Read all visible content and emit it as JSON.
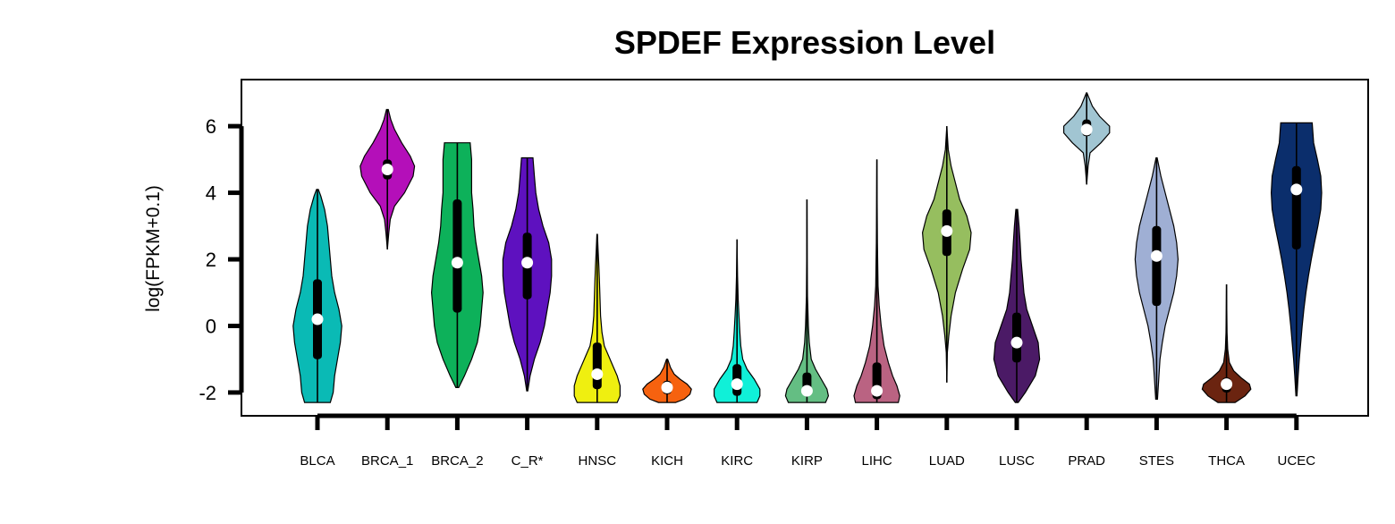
{
  "chart_data": {
    "type": "violin",
    "title": "SPDEF Expression Level",
    "ylabel": "log(FPKM+0.1)",
    "xlabel": "",
    "ylim": [
      -2.7,
      7.4
    ],
    "yticks": [
      -2,
      0,
      2,
      4,
      6
    ],
    "ytick_labels": [
      "-2",
      "0",
      "2",
      "4",
      "6"
    ],
    "grid": false,
    "categories": [
      "BLCA",
      "BRCA_1",
      "BRCA_2",
      "C_R*",
      "HNSC",
      "KICH",
      "KIRC",
      "KIRP",
      "LIHC",
      "LUAD",
      "LUSC",
      "PRAD",
      "STES",
      "THCA",
      "UCEC"
    ],
    "colors": [
      "#0ABAB5",
      "#B40FB9",
      "#0DB15A",
      "#5E11BF",
      "#EFEF10",
      "#F6620F",
      "#10F0D8",
      "#64BE83",
      "#BA6382",
      "#96BE5F",
      "#4B1A66",
      "#A1C5D2",
      "#9FAFD4",
      "#6B2410",
      "#0B2E6C"
    ],
    "series": [
      {
        "category": "BLCA",
        "min": -2.3,
        "max": 4.1,
        "q1": -1.0,
        "q3": 1.4,
        "median": 0.2,
        "density": [
          [
            -2.3,
            0.45
          ],
          [
            -2.0,
            0.55
          ],
          [
            -1.5,
            0.6
          ],
          [
            -1.0,
            0.7
          ],
          [
            -0.5,
            0.8
          ],
          [
            0.0,
            0.85
          ],
          [
            0.5,
            0.75
          ],
          [
            1.0,
            0.6
          ],
          [
            1.5,
            0.5
          ],
          [
            2.0,
            0.45
          ],
          [
            2.5,
            0.4
          ],
          [
            3.0,
            0.35
          ],
          [
            3.5,
            0.25
          ],
          [
            3.9,
            0.12
          ],
          [
            4.1,
            0.03
          ]
        ]
      },
      {
        "category": "BRCA_1",
        "min": 2.3,
        "max": 6.5,
        "q1": 4.4,
        "q3": 5.0,
        "median": 4.7,
        "density": [
          [
            2.3,
            0.0
          ],
          [
            2.8,
            0.05
          ],
          [
            3.2,
            0.1
          ],
          [
            3.6,
            0.25
          ],
          [
            4.0,
            0.6
          ],
          [
            4.5,
            0.9
          ],
          [
            4.8,
            0.95
          ],
          [
            5.1,
            0.8
          ],
          [
            5.5,
            0.5
          ],
          [
            5.9,
            0.25
          ],
          [
            6.2,
            0.12
          ],
          [
            6.5,
            0.03
          ]
        ]
      },
      {
        "category": "BRCA_2",
        "min": -1.85,
        "max": 5.5,
        "q1": 0.4,
        "q3": 3.8,
        "median": 1.9,
        "density": [
          [
            -1.85,
            0.05
          ],
          [
            -1.5,
            0.25
          ],
          [
            -1.0,
            0.5
          ],
          [
            -0.5,
            0.7
          ],
          [
            0.0,
            0.8
          ],
          [
            0.5,
            0.85
          ],
          [
            1.0,
            0.9
          ],
          [
            1.5,
            0.85
          ],
          [
            2.0,
            0.75
          ],
          [
            2.5,
            0.65
          ],
          [
            3.0,
            0.58
          ],
          [
            3.5,
            0.55
          ],
          [
            4.0,
            0.5
          ],
          [
            4.5,
            0.5
          ],
          [
            5.0,
            0.5
          ],
          [
            5.5,
            0.45
          ]
        ]
      },
      {
        "category": "C_R*",
        "min": -1.95,
        "max": 5.05,
        "q1": 0.8,
        "q3": 2.8,
        "median": 1.9,
        "density": [
          [
            -1.95,
            0.02
          ],
          [
            -1.5,
            0.1
          ],
          [
            -1.0,
            0.25
          ],
          [
            -0.5,
            0.45
          ],
          [
            0.0,
            0.6
          ],
          [
            0.5,
            0.7
          ],
          [
            1.0,
            0.8
          ],
          [
            1.5,
            0.85
          ],
          [
            2.0,
            0.85
          ],
          [
            2.5,
            0.75
          ],
          [
            3.0,
            0.55
          ],
          [
            3.5,
            0.4
          ],
          [
            4.0,
            0.3
          ],
          [
            4.5,
            0.25
          ],
          [
            5.05,
            0.2
          ]
        ]
      },
      {
        "category": "HNSC",
        "min": -2.3,
        "max": 2.75,
        "q1": -1.9,
        "q3": -0.5,
        "median": -1.45,
        "density": [
          [
            -2.3,
            0.7
          ],
          [
            -2.1,
            0.8
          ],
          [
            -1.8,
            0.8
          ],
          [
            -1.5,
            0.7
          ],
          [
            -1.2,
            0.55
          ],
          [
            -0.9,
            0.4
          ],
          [
            -0.6,
            0.25
          ],
          [
            -0.2,
            0.17
          ],
          [
            0.3,
            0.12
          ],
          [
            0.8,
            0.1
          ],
          [
            1.3,
            0.08
          ],
          [
            1.8,
            0.06
          ],
          [
            2.3,
            0.03
          ],
          [
            2.75,
            0.01
          ]
        ]
      },
      {
        "category": "KICH",
        "min": -2.3,
        "max": -1.0,
        "q1": -2.05,
        "q3": -1.65,
        "median": -1.85,
        "density": [
          [
            -2.3,
            0.3
          ],
          [
            -2.2,
            0.6
          ],
          [
            -2.05,
            0.8
          ],
          [
            -1.9,
            0.85
          ],
          [
            -1.75,
            0.7
          ],
          [
            -1.6,
            0.45
          ],
          [
            -1.45,
            0.25
          ],
          [
            -1.25,
            0.12
          ],
          [
            -1.0,
            0.02
          ]
        ]
      },
      {
        "category": "KIRC",
        "min": -2.3,
        "max": 2.6,
        "q1": -2.1,
        "q3": -1.15,
        "median": -1.75,
        "density": [
          [
            -2.3,
            0.7
          ],
          [
            -2.1,
            0.8
          ],
          [
            -1.9,
            0.8
          ],
          [
            -1.6,
            0.6
          ],
          [
            -1.3,
            0.35
          ],
          [
            -1.0,
            0.2
          ],
          [
            -0.6,
            0.13
          ],
          [
            -0.2,
            0.1
          ],
          [
            0.3,
            0.07
          ],
          [
            0.8,
            0.04
          ],
          [
            1.5,
            0.02
          ],
          [
            2.6,
            0.0
          ]
        ]
      },
      {
        "category": "KIRP",
        "min": -2.3,
        "max": 3.8,
        "q1": -2.1,
        "q3": -1.4,
        "median": -1.95,
        "density": [
          [
            -2.3,
            0.65
          ],
          [
            -2.1,
            0.75
          ],
          [
            -1.9,
            0.7
          ],
          [
            -1.6,
            0.5
          ],
          [
            -1.3,
            0.3
          ],
          [
            -1.0,
            0.15
          ],
          [
            -0.5,
            0.08
          ],
          [
            0.0,
            0.05
          ],
          [
            0.9,
            0.02
          ],
          [
            2.0,
            0.01
          ],
          [
            3.8,
            0.0
          ]
        ]
      },
      {
        "category": "LIHC",
        "min": -2.3,
        "max": 5.0,
        "q1": -2.2,
        "q3": -1.1,
        "median": -1.95,
        "density": [
          [
            -2.3,
            0.75
          ],
          [
            -2.1,
            0.8
          ],
          [
            -1.8,
            0.7
          ],
          [
            -1.5,
            0.55
          ],
          [
            -1.1,
            0.4
          ],
          [
            -0.6,
            0.25
          ],
          [
            0.0,
            0.15
          ],
          [
            0.6,
            0.08
          ],
          [
            1.2,
            0.04
          ],
          [
            2.5,
            0.02
          ],
          [
            5.0,
            0.0
          ]
        ]
      },
      {
        "category": "LUAD",
        "min": -1.7,
        "max": 6.0,
        "q1": 2.1,
        "q3": 3.5,
        "median": 2.85,
        "density": [
          [
            -1.7,
            0.0
          ],
          [
            -0.8,
            0.02
          ],
          [
            -0.3,
            0.07
          ],
          [
            0.3,
            0.15
          ],
          [
            1.0,
            0.3
          ],
          [
            1.7,
            0.55
          ],
          [
            2.3,
            0.8
          ],
          [
            2.8,
            0.85
          ],
          [
            3.3,
            0.7
          ],
          [
            3.8,
            0.45
          ],
          [
            4.3,
            0.3
          ],
          [
            4.8,
            0.15
          ],
          [
            5.3,
            0.05
          ],
          [
            6.0,
            0.0
          ]
        ]
      },
      {
        "category": "LUSC",
        "min": -2.3,
        "max": 3.5,
        "q1": -1.1,
        "q3": 0.4,
        "median": -0.5,
        "density": [
          [
            -2.3,
            0.05
          ],
          [
            -2.0,
            0.3
          ],
          [
            -1.5,
            0.65
          ],
          [
            -1.0,
            0.8
          ],
          [
            -0.5,
            0.75
          ],
          [
            0.0,
            0.55
          ],
          [
            0.5,
            0.35
          ],
          [
            1.0,
            0.25
          ],
          [
            1.5,
            0.2
          ],
          [
            2.0,
            0.15
          ],
          [
            2.5,
            0.12
          ],
          [
            3.0,
            0.08
          ],
          [
            3.5,
            0.03
          ]
        ]
      },
      {
        "category": "PRAD",
        "min": 4.25,
        "max": 7.0,
        "q1": 5.7,
        "q3": 6.2,
        "median": 5.9,
        "density": [
          [
            4.25,
            0.0
          ],
          [
            4.8,
            0.05
          ],
          [
            5.2,
            0.12
          ],
          [
            5.5,
            0.5
          ],
          [
            5.8,
            0.8
          ],
          [
            6.0,
            0.8
          ],
          [
            6.3,
            0.45
          ],
          [
            6.6,
            0.2
          ],
          [
            6.85,
            0.08
          ],
          [
            7.0,
            0.01
          ]
        ]
      },
      {
        "category": "STES",
        "min": -2.2,
        "max": 5.05,
        "q1": 0.6,
        "q3": 3.0,
        "median": 2.1,
        "density": [
          [
            -2.2,
            0.03
          ],
          [
            -1.5,
            0.08
          ],
          [
            -1.0,
            0.12
          ],
          [
            -0.5,
            0.2
          ],
          [
            0.0,
            0.3
          ],
          [
            0.5,
            0.45
          ],
          [
            1.0,
            0.6
          ],
          [
            1.5,
            0.7
          ],
          [
            2.0,
            0.75
          ],
          [
            2.5,
            0.7
          ],
          [
            3.0,
            0.6
          ],
          [
            3.5,
            0.45
          ],
          [
            4.0,
            0.3
          ],
          [
            4.5,
            0.15
          ],
          [
            5.05,
            0.02
          ]
        ]
      },
      {
        "category": "THCA",
        "min": -2.3,
        "max": 1.25,
        "q1": -2.0,
        "q3": -1.55,
        "median": -1.75,
        "density": [
          [
            -2.3,
            0.3
          ],
          [
            -2.1,
            0.65
          ],
          [
            -1.9,
            0.85
          ],
          [
            -1.75,
            0.8
          ],
          [
            -1.55,
            0.5
          ],
          [
            -1.35,
            0.25
          ],
          [
            -1.1,
            0.1
          ],
          [
            -0.7,
            0.04
          ],
          [
            -0.2,
            0.02
          ],
          [
            0.5,
            0.01
          ],
          [
            1.25,
            0.0
          ]
        ]
      },
      {
        "category": "UCEC",
        "min": -2.1,
        "max": 6.1,
        "q1": 2.3,
        "q3": 4.8,
        "median": 4.1,
        "density": [
          [
            -2.1,
            0.02
          ],
          [
            -1.5,
            0.06
          ],
          [
            -1.0,
            0.1
          ],
          [
            -0.5,
            0.15
          ],
          [
            0.0,
            0.2
          ],
          [
            0.5,
            0.26
          ],
          [
            1.0,
            0.33
          ],
          [
            1.5,
            0.42
          ],
          [
            2.0,
            0.52
          ],
          [
            2.5,
            0.63
          ],
          [
            3.0,
            0.75
          ],
          [
            3.5,
            0.85
          ],
          [
            4.0,
            0.88
          ],
          [
            4.5,
            0.85
          ],
          [
            5.0,
            0.73
          ],
          [
            5.5,
            0.6
          ],
          [
            6.1,
            0.55
          ]
        ]
      }
    ]
  }
}
